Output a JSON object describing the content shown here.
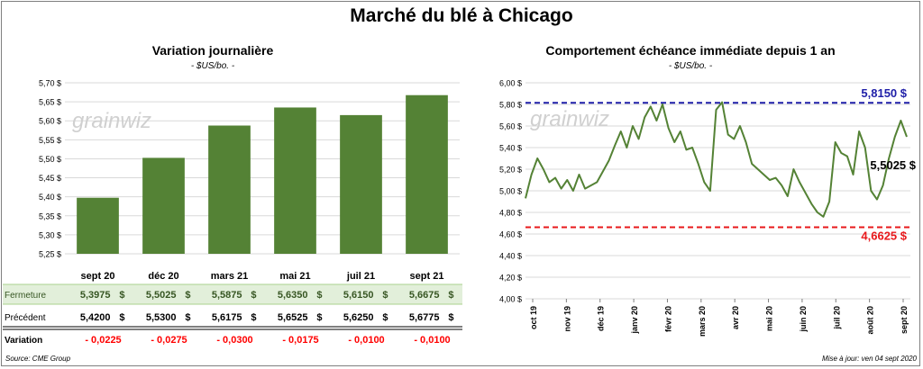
{
  "title": "Marché du blé à Chicago",
  "left_chart": {
    "title": "Variation journalière",
    "subtitle": "- $US/bo. -",
    "type": "bar",
    "categories": [
      "sept 20",
      "déc 20",
      "mars 21",
      "mai 21",
      "juil 21",
      "sept 21"
    ],
    "values": [
      5.3975,
      5.5025,
      5.5875,
      5.635,
      5.615,
      5.6675
    ],
    "ylim": [
      5.25,
      5.7
    ],
    "ytick_values": [
      5.25,
      5.3,
      5.35,
      5.4,
      5.45,
      5.5,
      5.55,
      5.6,
      5.65,
      5.7
    ],
    "ytick_labels": [
      "5,25 $",
      "5,30 $",
      "5,35 $",
      "5,40 $",
      "5,45 $",
      "5,50 $",
      "5,55 $",
      "5,60 $",
      "5,65 $",
      "5,70 $"
    ],
    "bar_color": "#548235",
    "grid": "horizontal"
  },
  "table": {
    "rows": [
      {
        "label": "Fermeture",
        "values": [
          "5,3975",
          "5,5025",
          "5,5875",
          "5,6350",
          "5,6150",
          "5,6675"
        ],
        "unit": "$",
        "bg": "#e2efda",
        "color": "#375623"
      },
      {
        "label": "Précédent",
        "values": [
          "5,4200",
          "5,5300",
          "5,6175",
          "5,6525",
          "5,6250",
          "5,6775"
        ],
        "unit": "$",
        "bg": "#ffffff",
        "color": "#000000"
      },
      {
        "label": "Variation",
        "values": [
          "- 0,0225",
          "- 0,0275",
          "- 0,0300",
          "- 0,0175",
          "- 0,0100",
          "- 0,0100"
        ],
        "unit": "",
        "bg": "#ffffff",
        "color": "#ff0000"
      }
    ]
  },
  "right_chart": {
    "title": "Comportement  échéance immédiate depuis 1 an",
    "subtitle": "- $US/bo. -",
    "type": "line",
    "ylim": [
      4.0,
      6.0
    ],
    "ytick_values": [
      4.0,
      4.2,
      4.4,
      4.6,
      4.8,
      5.0,
      5.2,
      5.4,
      5.6,
      5.8,
      6.0
    ],
    "ytick_labels": [
      "4,00 $",
      "4,20 $",
      "4,40 $",
      "4,60 $",
      "4,80 $",
      "5,00 $",
      "5,20 $",
      "5,40 $",
      "5,60 $",
      "5,80 $",
      "6,00 $"
    ],
    "xtick_labels": [
      "oct 19",
      "nov 19",
      "déc 19",
      "janv 20",
      "févr 20",
      "mars 20",
      "avr 20",
      "mai 20",
      "juin 20",
      "juil 20",
      "août 20",
      "sept 20"
    ],
    "line_color": "#548235",
    "series": [
      {
        "x": [
          "oct 19",
          "oct 19",
          "oct 19",
          "oct 19",
          "oct 19",
          "oct 19",
          "oct 19",
          "nov 19",
          "nov 19",
          "nov 19",
          "nov 19",
          "nov 19",
          "nov 19",
          "déc 19",
          "déc 19",
          "déc 19",
          "déc 19",
          "déc 19",
          "déc 19",
          "janv 20",
          "janv 20",
          "janv 20",
          "janv 20",
          "janv 20",
          "févr 20",
          "févr 20",
          "févr 20",
          "févr 20",
          "févr 20",
          "mars 20",
          "mars 20",
          "mars 20",
          "mars 20",
          "mars 20",
          "mars 20",
          "avr 20",
          "avr 20",
          "avr 20",
          "avr 20",
          "avr 20",
          "mai 20",
          "mai 20",
          "mai 20",
          "mai 20",
          "mai 20",
          "juin 20",
          "juin 20",
          "juin 20",
          "juin 20",
          "juin 20",
          "juin 20",
          "juil 20",
          "juil 20",
          "juil 20",
          "juil 20",
          "juil 20",
          "août 20",
          "août 20",
          "août 20",
          "août 20",
          "août 20",
          "sept 20",
          "sept 20",
          "sept 20",
          "sept 20"
        ],
        "values": [
          4.93,
          5.15,
          5.3,
          5.2,
          5.08,
          5.12,
          5.02,
          5.1,
          5.0,
          5.15,
          5.02,
          5.05,
          5.08,
          5.18,
          5.28,
          5.42,
          5.55,
          5.4,
          5.6,
          5.48,
          5.68,
          5.78,
          5.65,
          5.8,
          5.58,
          5.45,
          5.55,
          5.38,
          5.4,
          5.25,
          5.08,
          5.0,
          5.75,
          5.82,
          5.52,
          5.48,
          5.6,
          5.45,
          5.25,
          5.2,
          5.15,
          5.1,
          5.12,
          5.05,
          4.95,
          5.2,
          5.08,
          4.98,
          4.88,
          4.8,
          4.76,
          4.9,
          5.45,
          5.35,
          5.32,
          5.15,
          5.55,
          5.4,
          5.0,
          4.92,
          5.05,
          5.3,
          5.5,
          5.65,
          5.5
        ]
      }
    ],
    "reference_lines": [
      {
        "value": 5.815,
        "label": "5,8150 $",
        "color": "#1f1fa8"
      },
      {
        "value": 4.6625,
        "label": "4,6625 $",
        "color": "#e8181b"
      }
    ],
    "last_value_label": "5,5025 $"
  },
  "watermark": "grainwiz",
  "footer": {
    "source": "Source: CME Group",
    "updated": "Mise à jour: ven 04 sept 2020"
  }
}
